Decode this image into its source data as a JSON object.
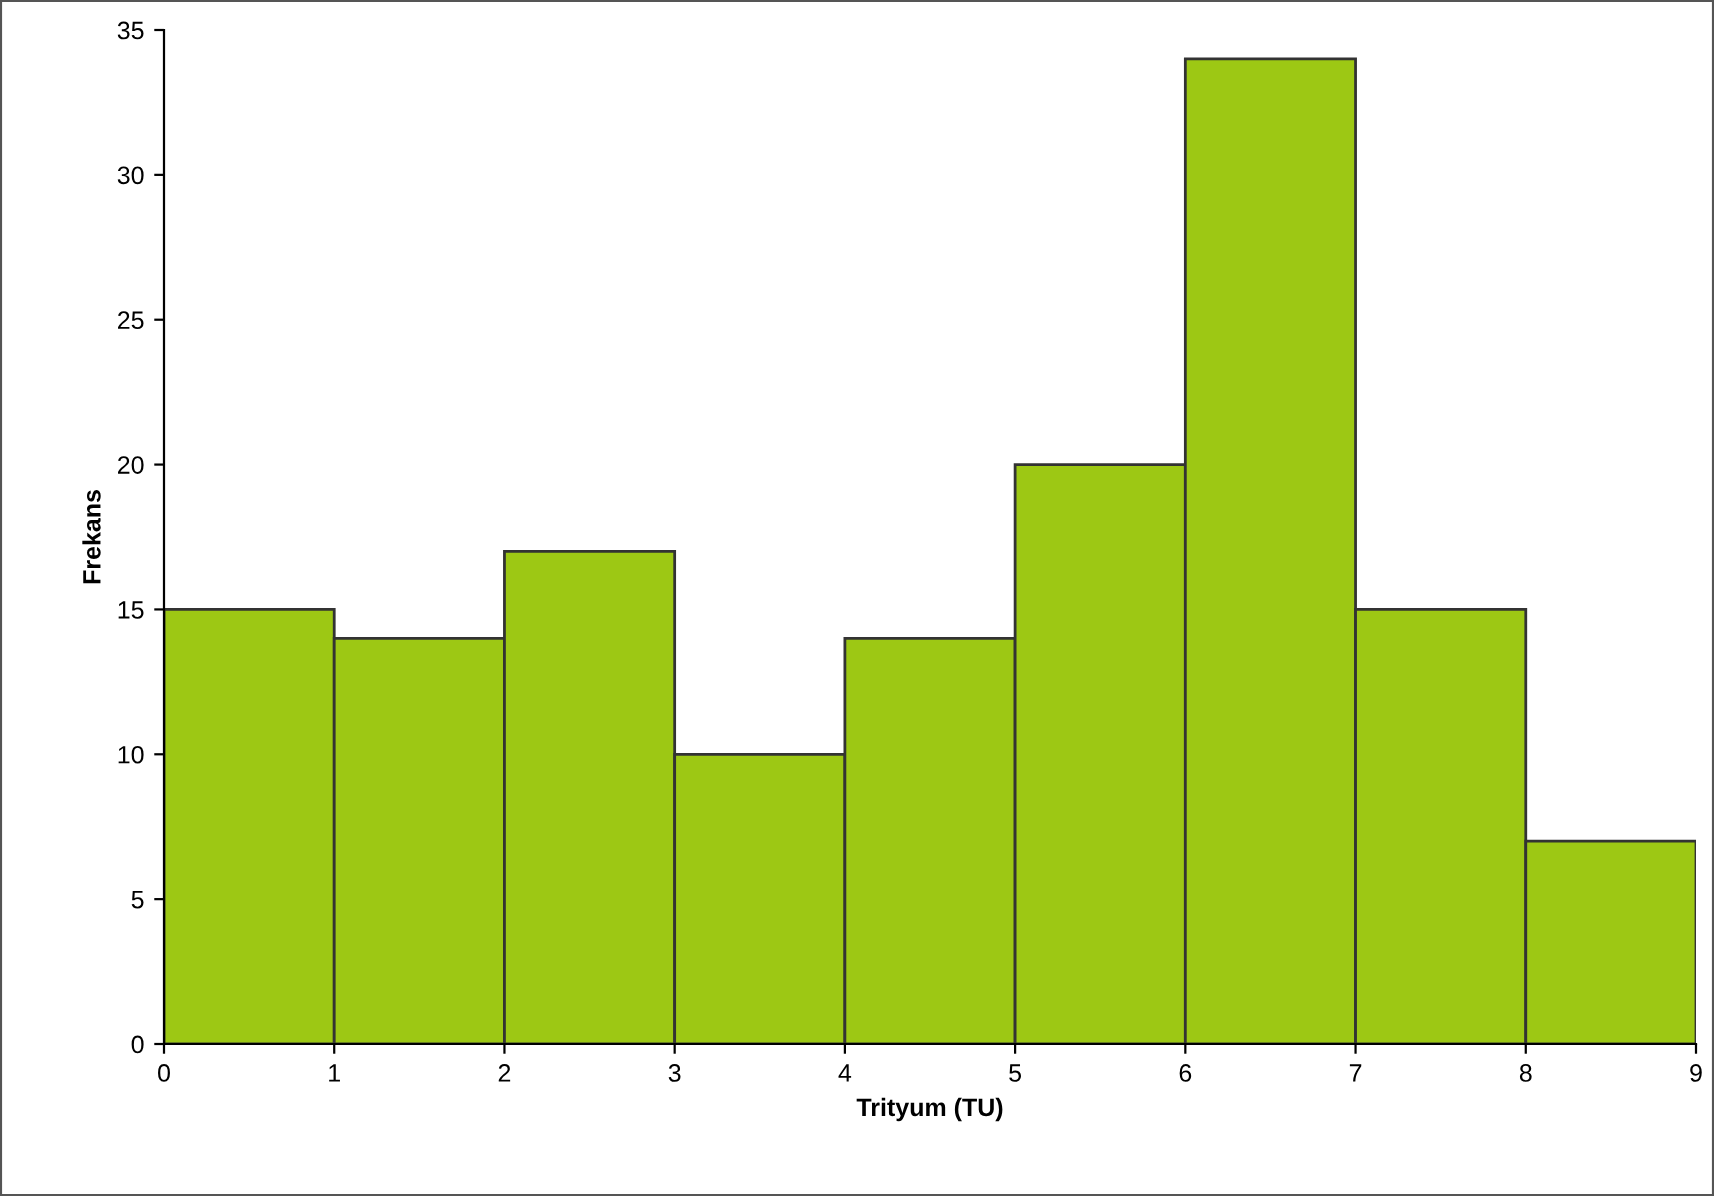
{
  "chart_data": {
    "type": "histogram",
    "xlabel": "Trityum (TU)",
    "ylabel": "Frekans",
    "bins": [
      0,
      1,
      2,
      3,
      4,
      5,
      6,
      7,
      8,
      9
    ],
    "values": [
      15,
      14,
      17,
      10,
      14,
      20,
      34,
      15,
      7
    ],
    "color": "#9dc814",
    "xlim": [
      0,
      9
    ],
    "xticks": [
      0,
      1,
      2,
      3,
      4,
      5,
      6,
      7,
      8,
      9
    ],
    "ylim": [
      0,
      35
    ],
    "yticks": [
      0,
      5,
      10,
      15,
      20,
      25,
      30,
      35
    ],
    "grid": false,
    "legend": false
  }
}
